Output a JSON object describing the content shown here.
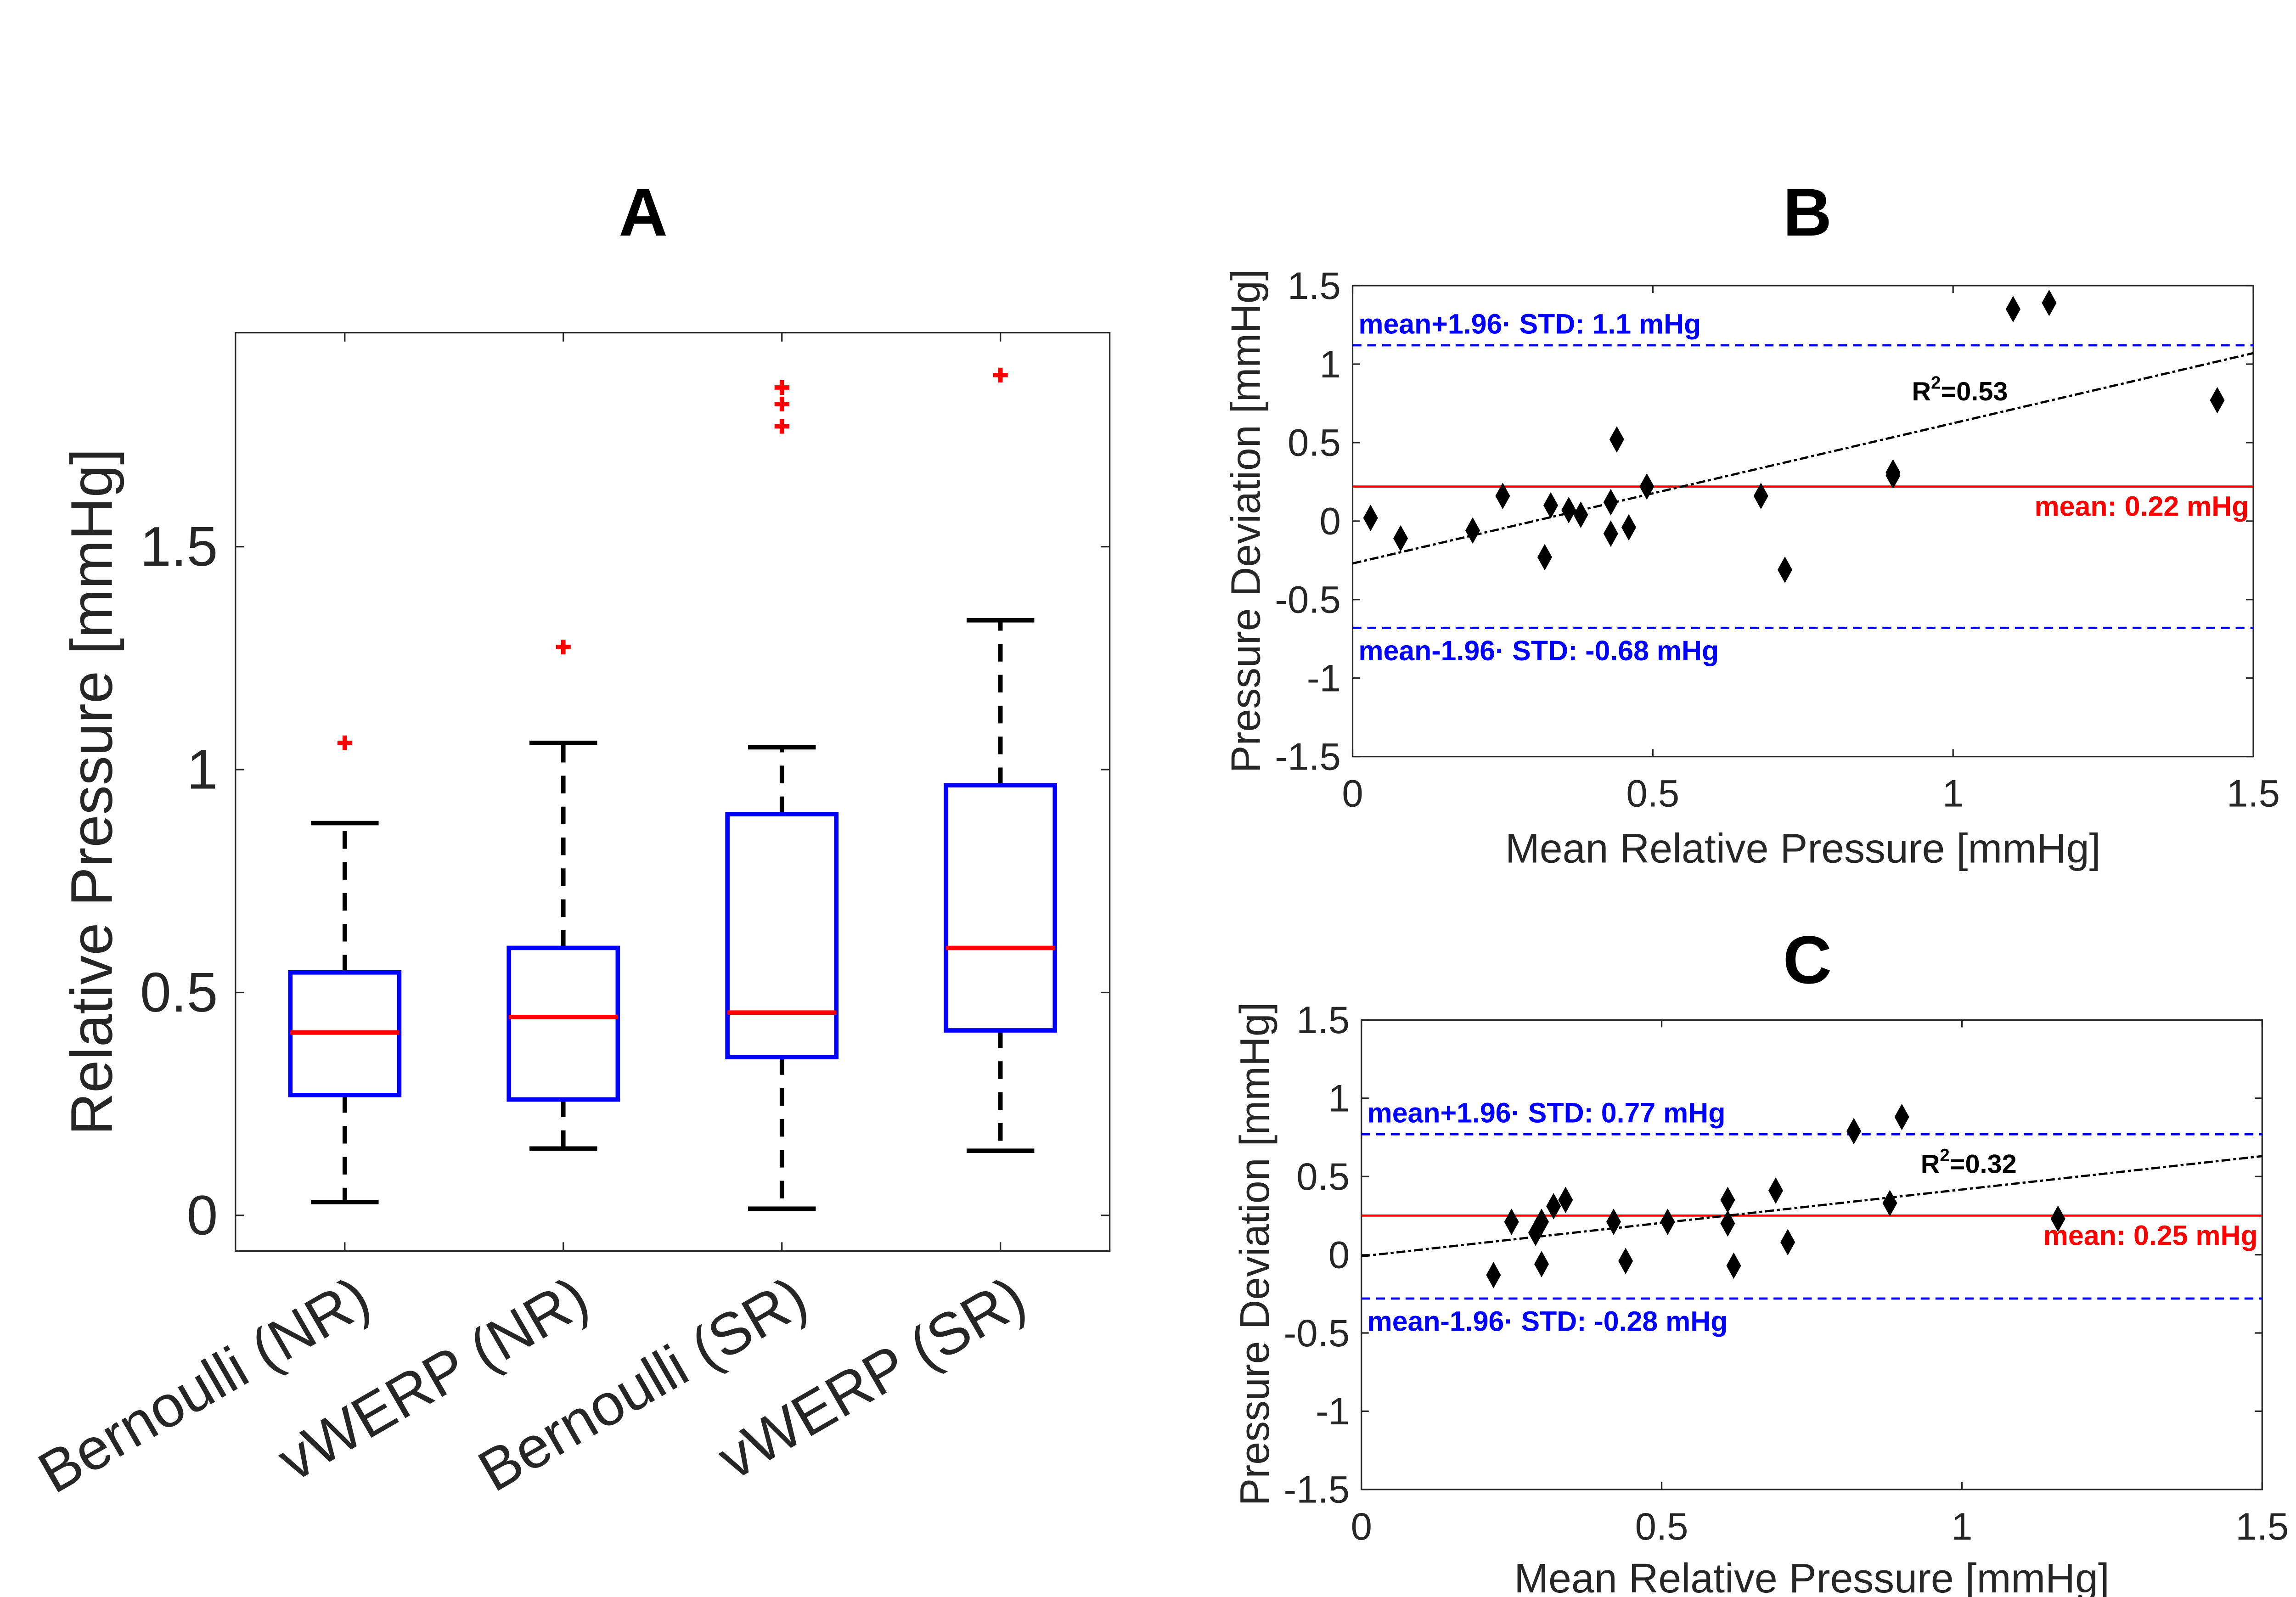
{
  "chart_data": [
    {
      "panel": "A",
      "type": "box",
      "title": "A",
      "ylabel": "Relative Pressure [mmHg]",
      "ylim": [
        -0.08,
        1.98
      ],
      "yticks": [
        0,
        0.5,
        1,
        1.5
      ],
      "ytick_labels": [
        "0",
        "0.5",
        "1",
        "1.5"
      ],
      "categories": [
        "Bernoulli (NR)",
        "vWERP (NR)",
        "Bernoulli (SR)",
        "vWERP (SR)"
      ],
      "boxes": [
        {
          "whisker_low": 0.03,
          "q1": 0.27,
          "median": 0.41,
          "q3": 0.545,
          "whisker_high": 0.88,
          "outliers": [
            1.06
          ]
        },
        {
          "whisker_low": 0.15,
          "q1": 0.26,
          "median": 0.445,
          "q3": 0.6,
          "whisker_high": 1.06,
          "outliers": [
            1.275
          ]
        },
        {
          "whisker_low": 0.015,
          "q1": 0.355,
          "median": 0.455,
          "q3": 0.9,
          "whisker_high": 1.05,
          "outliers": [
            1.77,
            1.82,
            1.857
          ]
        },
        {
          "whisker_low": 0.145,
          "q1": 0.415,
          "median": 0.6,
          "q3": 0.965,
          "whisker_high": 1.335,
          "outliers": [
            1.885
          ]
        }
      ],
      "colors": {
        "box": "#0000ff",
        "median": "#ff0000",
        "whisker": "#000000",
        "outlier": "#ff0000"
      }
    },
    {
      "panel": "B",
      "type": "scatter",
      "title": "B",
      "xlabel": "Mean Relative Pressure [mmHg]",
      "ylabel": "Pressure Deviation [mmHg]",
      "xlim": [
        0,
        1.5
      ],
      "ylim": [
        -1.5,
        1.5
      ],
      "xticks": [
        0,
        0.5,
        1,
        1.5
      ],
      "xtick_labels": [
        "0",
        "0.5",
        "1",
        "1.5"
      ],
      "yticks": [
        -1.5,
        -1,
        -0.5,
        0,
        0.5,
        1,
        1.5
      ],
      "ytick_labels": [
        "-1.5",
        "-1",
        "-0.5",
        "0",
        "0.5",
        "1",
        "1.5"
      ],
      "points": [
        [
          0.03,
          0.02
        ],
        [
          0.08,
          -0.11
        ],
        [
          0.2,
          -0.06
        ],
        [
          0.25,
          0.16
        ],
        [
          0.32,
          -0.23
        ],
        [
          0.33,
          0.1
        ],
        [
          0.36,
          0.07
        ],
        [
          0.38,
          0.04
        ],
        [
          0.43,
          -0.08
        ],
        [
          0.43,
          0.12
        ],
        [
          0.44,
          0.52
        ],
        [
          0.46,
          -0.04
        ],
        [
          0.49,
          0.22
        ],
        [
          0.68,
          0.16
        ],
        [
          0.72,
          -0.31
        ],
        [
          0.9,
          0.31
        ],
        [
          0.9,
          0.29
        ],
        [
          1.1,
          1.35
        ],
        [
          1.16,
          1.39
        ],
        [
          1.44,
          0.77
        ]
      ],
      "mean": 0.22,
      "upper_limit": 1.12,
      "lower_limit": -0.68,
      "fit_line": [
        [
          0,
          -0.27
        ],
        [
          1.5,
          1.07
        ]
      ],
      "labels": {
        "upper": "mean+1.96· STD: 1.1 mHg",
        "lower": "mean-1.96· STD: -0.68 mHg",
        "mean": "mean: 0.22 mHg",
        "r2_prefix": "R",
        "r2_sup": "2",
        "r2_value": "=0.53"
      },
      "colors": {
        "limits": "#0000ff",
        "mean": "#ff0000",
        "points": "#000000",
        "fit": "#000000"
      }
    },
    {
      "panel": "C",
      "type": "scatter",
      "title": "C",
      "xlabel": "Mean Relative Pressure [mmHg]",
      "ylabel": "Pressure Deviation [mmHg]",
      "xlim": [
        0,
        1.5
      ],
      "ylim": [
        -1.5,
        1.5
      ],
      "xticks": [
        0,
        0.5,
        1,
        1.5
      ],
      "xtick_labels": [
        "0",
        "0.5",
        "1",
        "1.5"
      ],
      "yticks": [
        -1.5,
        -1,
        -0.5,
        0,
        0.5,
        1,
        1.5
      ],
      "ytick_labels": [
        "-1.5",
        "-1",
        "-0.5",
        "0",
        "0.5",
        "1",
        "1.5"
      ],
      "points": [
        [
          0.22,
          -0.13
        ],
        [
          0.25,
          0.21
        ],
        [
          0.29,
          0.14
        ],
        [
          0.3,
          -0.06
        ],
        [
          0.3,
          0.21
        ],
        [
          0.32,
          0.31
        ],
        [
          0.34,
          0.35
        ],
        [
          0.42,
          0.21
        ],
        [
          0.44,
          -0.04
        ],
        [
          0.51,
          0.21
        ],
        [
          0.61,
          0.35
        ],
        [
          0.61,
          0.2
        ],
        [
          0.62,
          -0.07
        ],
        [
          0.69,
          0.41
        ],
        [
          0.71,
          0.08
        ],
        [
          0.82,
          0.79
        ],
        [
          0.88,
          0.33
        ],
        [
          0.9,
          0.88
        ],
        [
          1.16,
          0.23
        ]
      ],
      "mean": 0.25,
      "upper_limit": 0.77,
      "lower_limit": -0.28,
      "fit_line": [
        [
          0,
          -0.01
        ],
        [
          1.5,
          0.63
        ]
      ],
      "labels": {
        "upper": "mean+1.96· STD: 0.77 mHg",
        "lower": "mean-1.96· STD: -0.28 mHg",
        "mean": "mean: 0.25 mHg",
        "r2_prefix": "R",
        "r2_sup": "2",
        "r2_value": "=0.32"
      },
      "colors": {
        "limits": "#0000ff",
        "mean": "#ff0000",
        "points": "#000000",
        "fit": "#000000"
      }
    }
  ]
}
